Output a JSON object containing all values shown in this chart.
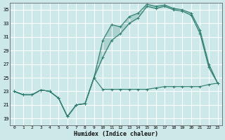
{
  "title": "",
  "xlabel": "Humidex (Indice chaleur)",
  "ylabel": "",
  "bg_color": "#cce8e8",
  "grid_color": "#ffffff",
  "line_color": "#2e7d6e",
  "ylim": [
    18,
    36
  ],
  "xlim": [
    -0.5,
    23.5
  ],
  "yticks": [
    19,
    21,
    23,
    25,
    27,
    29,
    31,
    33,
    35
  ],
  "xticks": [
    0,
    1,
    2,
    3,
    4,
    5,
    6,
    7,
    8,
    9,
    10,
    11,
    12,
    13,
    14,
    15,
    16,
    17,
    18,
    19,
    20,
    21,
    22,
    23
  ],
  "line1_y": [
    23.0,
    22.5,
    22.5,
    23.2,
    23.0,
    22.0,
    19.3,
    21.0,
    21.2,
    25.0,
    23.3,
    23.3,
    23.3,
    23.3,
    23.3,
    23.3,
    23.5,
    23.7,
    23.7,
    23.7,
    23.7,
    23.7,
    24.0,
    24.2
  ],
  "line2_y": [
    23.0,
    22.5,
    22.5,
    23.2,
    23.0,
    22.0,
    19.3,
    21.0,
    21.2,
    25.0,
    30.5,
    32.8,
    32.5,
    34.0,
    34.5,
    35.8,
    35.5,
    35.7,
    35.2,
    35.0,
    34.5,
    32.0,
    27.0,
    24.2
  ],
  "line3_y": [
    23.0,
    22.5,
    22.5,
    23.2,
    23.0,
    22.0,
    19.3,
    21.0,
    21.2,
    25.0,
    28.0,
    30.5,
    31.5,
    33.0,
    33.8,
    35.5,
    35.2,
    35.5,
    35.0,
    34.8,
    34.2,
    31.5,
    26.5,
    24.2
  ],
  "font_family": "monospace"
}
